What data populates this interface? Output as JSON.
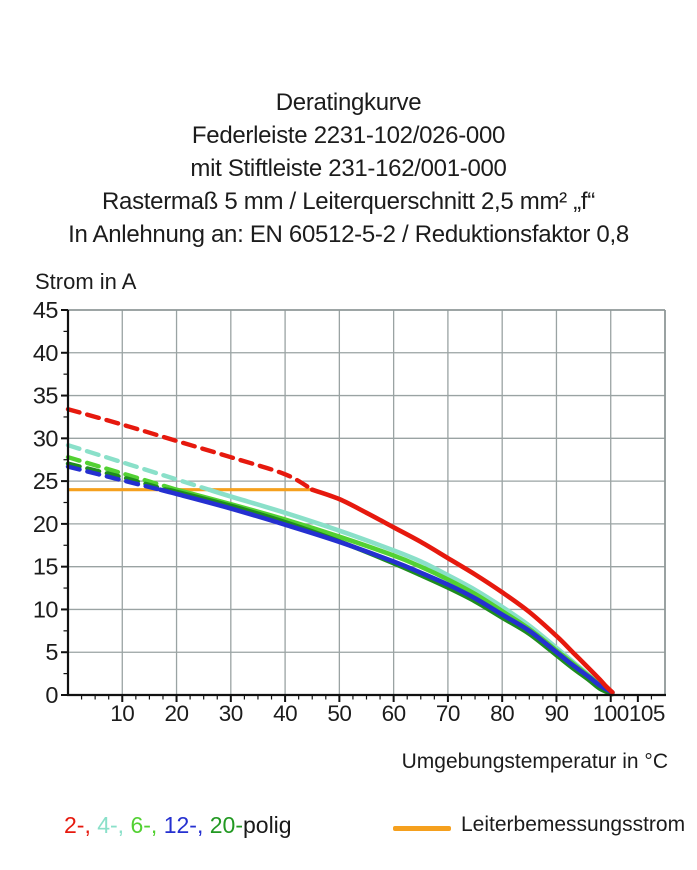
{
  "title": {
    "lines": [
      "Deratingkurve",
      "Federleiste 2231-102/026-000",
      "mit Stiftleiste 231-162/001-000",
      "Rastermaß 5 mm / Leiterquerschnitt 2,5 mm² „f“",
      "In Anlehnung an: EN 60512-5-2 / Reduktionsfaktor 0,8"
    ]
  },
  "axes": {
    "y_label": "Strom in A",
    "x_label": "Umgebungstemperatur in °C"
  },
  "legend": {
    "poles": [
      {
        "text": "2-, ",
        "color": "#E6190E"
      },
      {
        "text": "4-, ",
        "color": "#8AE0C9"
      },
      {
        "text": "6-, ",
        "color": "#53D133"
      },
      {
        "text": "12-, ",
        "color": "#2530D0"
      },
      {
        "text": "20-",
        "color": "#229922"
      },
      {
        "text": "polig",
        "color": "#1A1A1A"
      }
    ],
    "reference": {
      "label": "Leiterbemessungsstrom",
      "color": "#F5A01E"
    }
  },
  "chart_data": {
    "type": "line",
    "title": "Deratingkurve",
    "xlabel": "Umgebungstemperatur in °C",
    "ylabel": "Strom in A",
    "xlim": [
      0,
      110
    ],
    "ylim": [
      0,
      45
    ],
    "x_ticks_labeled": [
      10,
      20,
      30,
      40,
      50,
      60,
      70,
      80,
      90,
      100,
      105
    ],
    "y_ticks_labeled": [
      0,
      5,
      10,
      15,
      20,
      25,
      30,
      35,
      40,
      45
    ],
    "minor_tick_step": 2.5,
    "grid": {
      "x_step": 10,
      "y_step": 5,
      "color": "#9AA3A3",
      "border_color": "#8F9898"
    },
    "reference_line": {
      "name": "Leiterbemessungsstrom",
      "y": 24,
      "x_start": 0,
      "x_end": 45,
      "color": "#F5A01E"
    },
    "dash_rule": "dashed above 24 A, solid below",
    "series": [
      {
        "name": "4-polig",
        "color": "#8AE0C9",
        "dashed": [
          [
            0,
            29.2
          ],
          [
            10,
            27.2
          ],
          [
            20,
            25.2
          ],
          [
            26,
            24.0
          ]
        ],
        "solid": [
          [
            26,
            24.0
          ],
          [
            30,
            23.2
          ],
          [
            40,
            21.3
          ],
          [
            50,
            19.2
          ],
          [
            60,
            16.9
          ],
          [
            65,
            15.6
          ],
          [
            70,
            14.0
          ],
          [
            75,
            12.3
          ],
          [
            80,
            10.3
          ],
          [
            85,
            8.1
          ],
          [
            90,
            5.5
          ],
          [
            93,
            3.9
          ],
          [
            96,
            2.3
          ],
          [
            98,
            1.3
          ],
          [
            100.3,
            0.3
          ]
        ]
      },
      {
        "name": "6-polig",
        "color": "#53D133",
        "dashed": [
          [
            0,
            27.8
          ],
          [
            10,
            25.9
          ],
          [
            20,
            24.0
          ]
        ],
        "solid": [
          [
            20,
            24.0
          ],
          [
            30,
            22.3
          ],
          [
            40,
            20.5
          ],
          [
            50,
            18.5
          ],
          [
            60,
            16.3
          ],
          [
            65,
            15.0
          ],
          [
            70,
            13.5
          ],
          [
            75,
            11.8
          ],
          [
            80,
            9.8
          ],
          [
            85,
            7.7
          ],
          [
            90,
            5.2
          ],
          [
            93,
            3.7
          ],
          [
            96,
            2.2
          ],
          [
            98,
            1.2
          ],
          [
            100.3,
            0.3
          ]
        ]
      },
      {
        "name": "20-polig",
        "color": "#1E8C1E",
        "dashed": [
          [
            0,
            27.05
          ],
          [
            10,
            25.45
          ],
          [
            18,
            24.0
          ]
        ],
        "solid": [
          [
            18,
            24.0
          ],
          [
            20,
            23.75
          ],
          [
            30,
            22.1
          ],
          [
            40,
            20.2
          ],
          [
            50,
            17.95
          ],
          [
            60,
            15.4
          ],
          [
            65,
            14.0
          ],
          [
            70,
            12.55
          ],
          [
            75,
            10.95
          ],
          [
            80,
            9.05
          ],
          [
            85,
            7.15
          ],
          [
            90,
            4.65
          ],
          [
            93,
            3.15
          ],
          [
            96,
            1.75
          ],
          [
            98,
            0.75
          ],
          [
            100.3,
            0.1
          ]
        ]
      },
      {
        "name": "12-polig",
        "color": "#2530D0",
        "dashed": [
          [
            0,
            26.7
          ],
          [
            10,
            25.1
          ],
          [
            17,
            24.0
          ]
        ],
        "solid": [
          [
            17,
            24.0
          ],
          [
            20,
            23.5
          ],
          [
            30,
            21.8
          ],
          [
            40,
            19.9
          ],
          [
            50,
            17.9
          ],
          [
            60,
            15.6
          ],
          [
            65,
            14.3
          ],
          [
            70,
            12.9
          ],
          [
            75,
            11.3
          ],
          [
            80,
            9.4
          ],
          [
            85,
            7.5
          ],
          [
            90,
            5.0
          ],
          [
            93,
            3.5
          ],
          [
            96,
            2.1
          ],
          [
            98,
            1.1
          ],
          [
            100.3,
            0.3
          ]
        ]
      },
      {
        "name": "2-polig",
        "color": "#E6190E",
        "dashed": [
          [
            0,
            33.4
          ],
          [
            10,
            31.6
          ],
          [
            20,
            29.7
          ],
          [
            30,
            27.8
          ],
          [
            40,
            25.8
          ],
          [
            45,
            24.0
          ]
        ],
        "solid": [
          [
            45,
            24.0
          ],
          [
            50,
            22.9
          ],
          [
            55,
            21.3
          ],
          [
            60,
            19.6
          ],
          [
            65,
            17.9
          ],
          [
            70,
            16.0
          ],
          [
            75,
            14.1
          ],
          [
            80,
            12.0
          ],
          [
            85,
            9.7
          ],
          [
            90,
            6.9
          ],
          [
            93,
            5.0
          ],
          [
            96,
            3.1
          ],
          [
            98,
            1.8
          ],
          [
            99,
            1.1
          ],
          [
            100.3,
            0.3
          ]
        ]
      }
    ]
  }
}
